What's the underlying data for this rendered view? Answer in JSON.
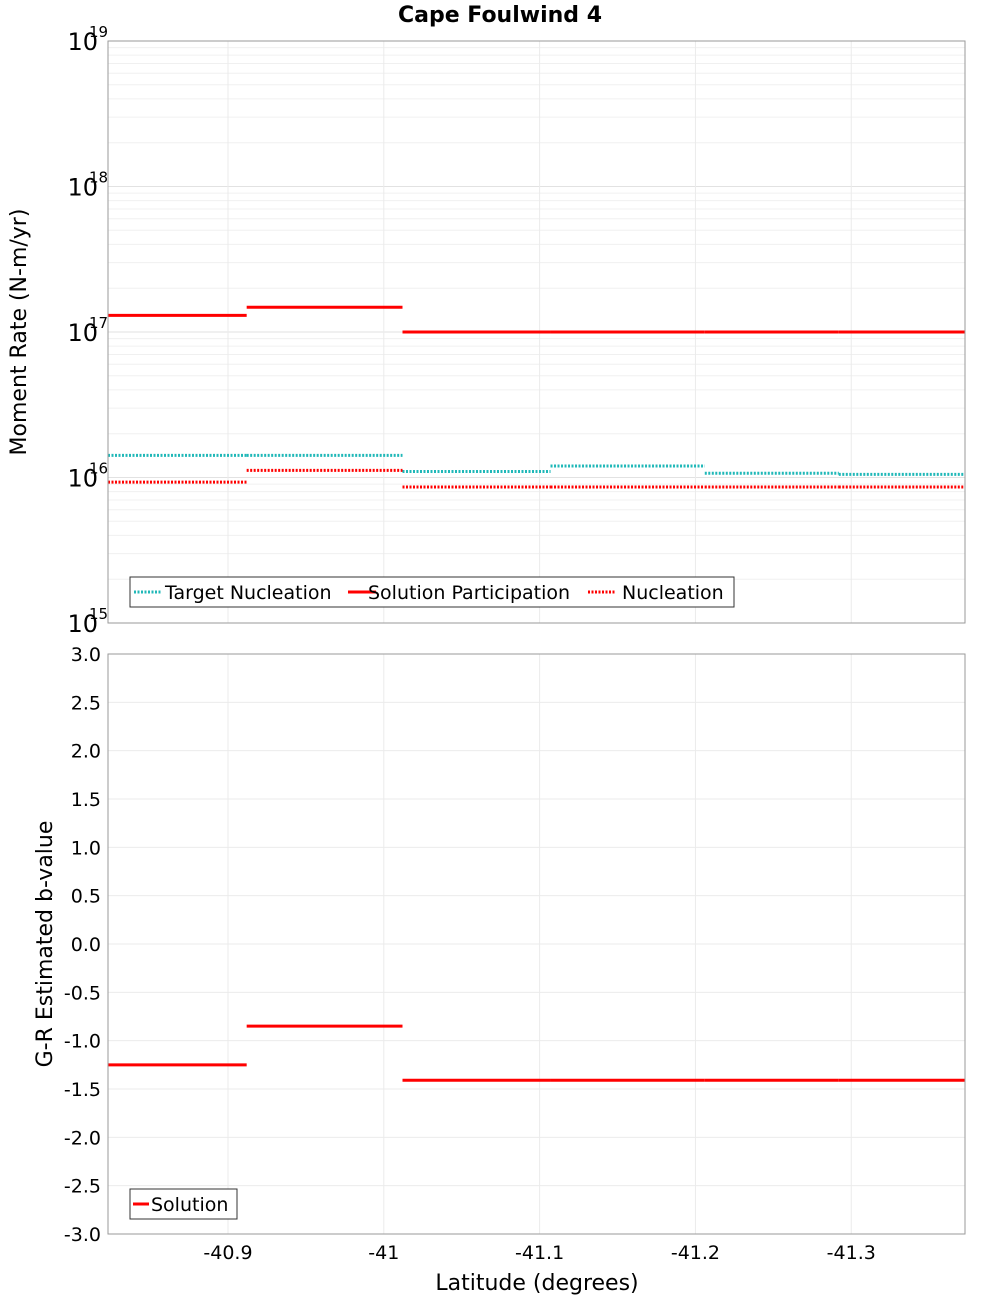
{
  "chart_data": {
    "type": "line",
    "title": "Cape Foulwind 4",
    "xlabel": "Latitude (degrees)",
    "xlim": [
      -40.823,
      -41.373
    ],
    "x_ticks": [
      -40.9,
      -41,
      -41.1,
      -41.2,
      -41.3
    ],
    "x_tick_labels": [
      "-40.9",
      "-41",
      "-41.1",
      "-41.2",
      "-41.3"
    ],
    "top": {
      "ylabel": "Moment Rate (N-m/yr)",
      "yscale": "log",
      "ylim": [
        1000000000000000.0,
        1e+19
      ],
      "y_tick_labels": [
        {
          "base": "10",
          "exp": "15",
          "value": 1000000000000000.0
        },
        {
          "base": "10",
          "exp": "16",
          "value": 1e+16
        },
        {
          "base": "10",
          "exp": "17",
          "value": 1e+17
        },
        {
          "base": "10",
          "exp": "18",
          "value": 1e+18
        },
        {
          "base": "10",
          "exp": "19",
          "value": 1e+19
        }
      ],
      "legend": [
        "Target Nucleation",
        "Solution Participation",
        "Nucleation"
      ],
      "series": [
        {
          "name": "Target Nucleation",
          "color": "#20b8b8",
          "style": "dotted",
          "segments": [
            [
              -40.823,
              -40.912,
              1.42e+16
            ],
            [
              -40.912,
              -41.012,
              1.42e+16
            ],
            [
              -41.012,
              -41.107,
              1.1e+16
            ],
            [
              -41.107,
              -41.206,
              1.2e+16
            ],
            [
              -41.206,
              -41.292,
              1.07e+16
            ],
            [
              -41.292,
              -41.373,
              1.05e+16
            ]
          ]
        },
        {
          "name": "Solution Participation",
          "color": "#ff0000",
          "style": "solid",
          "segments": [
            [
              -40.823,
              -40.912,
              1.3e+17
            ],
            [
              -40.912,
              -41.012,
              1.48e+17
            ],
            [
              -41.012,
              -41.107,
              1e+17
            ],
            [
              -41.107,
              -41.206,
              1e+17
            ],
            [
              -41.206,
              -41.292,
              1e+17
            ],
            [
              -41.292,
              -41.373,
              1e+17
            ]
          ]
        },
        {
          "name": "Nucleation",
          "color": "#ff0000",
          "style": "dotted",
          "segments": [
            [
              -40.823,
              -40.912,
              9300000000000000.0
            ],
            [
              -40.912,
              -41.012,
              1.12e+16
            ],
            [
              -41.012,
              -41.107,
              8600000000000000.0
            ],
            [
              -41.107,
              -41.206,
              8600000000000000.0
            ],
            [
              -41.206,
              -41.292,
              8600000000000000.0
            ],
            [
              -41.292,
              -41.373,
              8600000000000000.0
            ]
          ]
        }
      ]
    },
    "bottom": {
      "ylabel": "G-R Estimated b-value",
      "ylim": [
        -3.0,
        3.0
      ],
      "y_ticks": [
        3.0,
        2.5,
        2.0,
        1.5,
        1.0,
        0.5,
        0.0,
        -0.5,
        -1.0,
        -1.5,
        -2.0,
        -2.5,
        -3.0
      ],
      "y_tick_labels": [
        "3.0",
        "2.5",
        "2.0",
        "1.5",
        "1.0",
        "0.5",
        "0.0",
        "-0.5",
        "-1.0",
        "-1.5",
        "-2.0",
        "-2.5",
        "-3.0"
      ],
      "legend": [
        "Solution"
      ],
      "series": [
        {
          "name": "Solution",
          "color": "#ff0000",
          "style": "solid",
          "segments": [
            [
              -40.823,
              -40.912,
              -1.25
            ],
            [
              -40.912,
              -41.012,
              -0.85
            ],
            [
              -41.012,
              -41.107,
              -1.41
            ],
            [
              -41.107,
              -41.206,
              -1.41
            ],
            [
              -41.206,
              -41.292,
              -1.41
            ],
            [
              -41.292,
              -41.373,
              -1.41
            ]
          ]
        }
      ]
    }
  }
}
